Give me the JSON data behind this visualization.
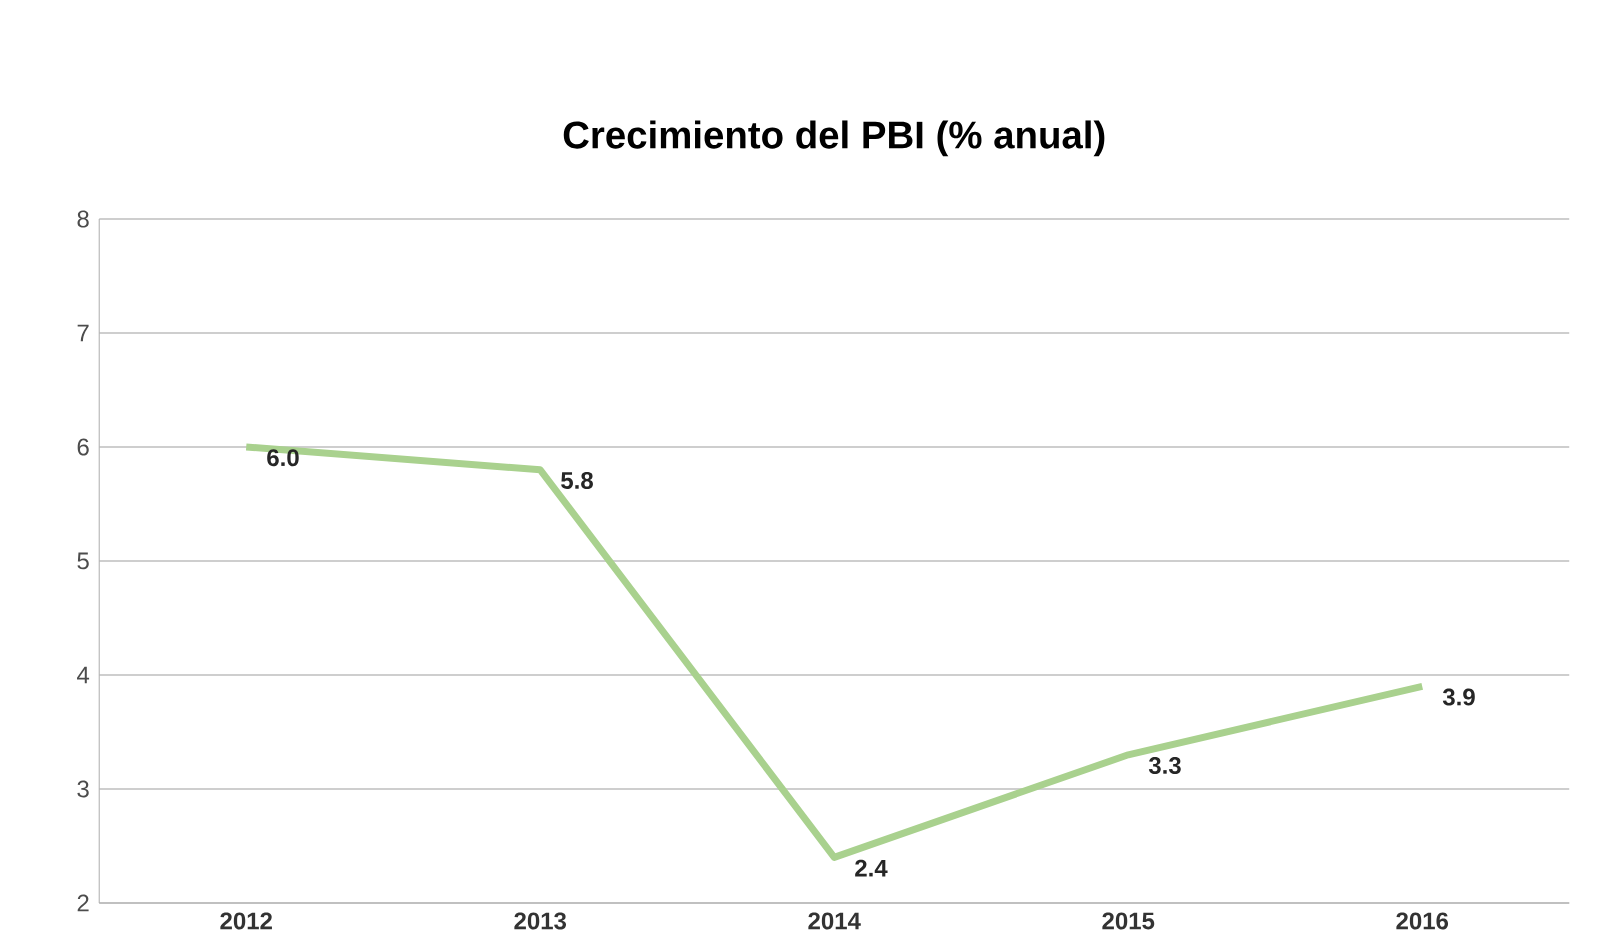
{
  "chart_data": {
    "type": "line",
    "title": "Crecimiento del PBI (% anual)",
    "categories": [
      "2012",
      "2013",
      "2014",
      "2015",
      "2016"
    ],
    "series": [
      {
        "color": "#a9d18e",
        "values": [
          6.0,
          5.8,
          2.4,
          3.3,
          3.9
        ],
        "value_labels": [
          "6.0",
          "5.8",
          "2.4",
          "3.3",
          "3.9"
        ]
      }
    ],
    "ylim": [
      2,
      8
    ],
    "yticks": [
      2,
      3,
      4,
      5,
      6,
      7,
      8
    ],
    "grid": "y",
    "marker": "none",
    "line_style": "solid"
  }
}
